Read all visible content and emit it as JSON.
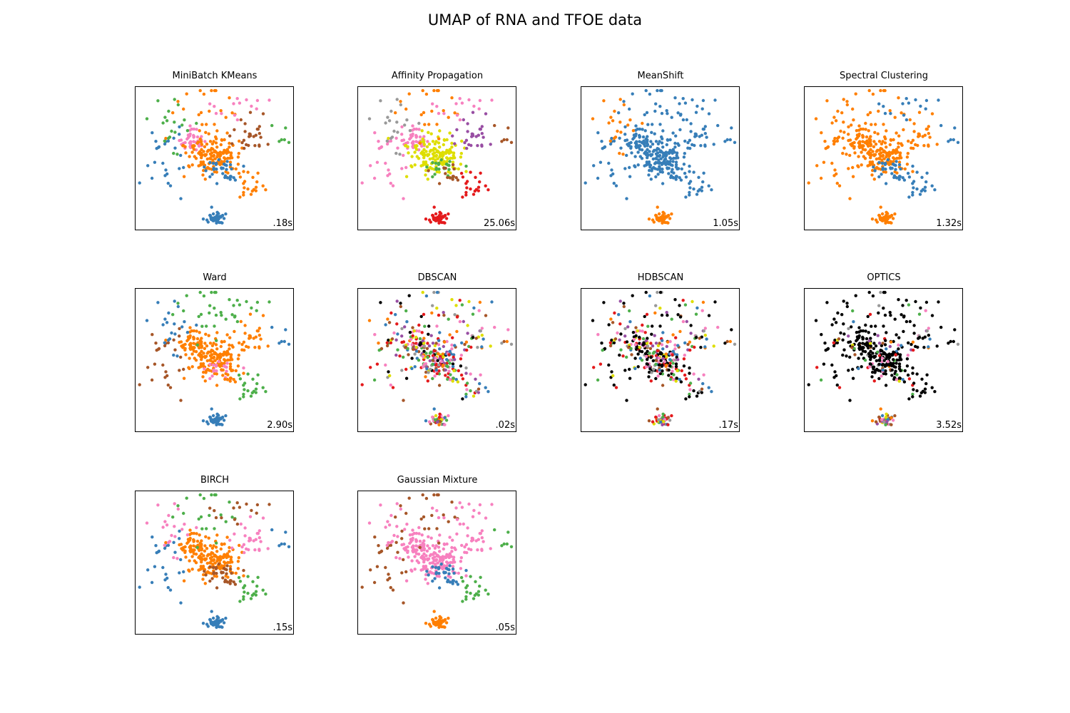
{
  "figure": {
    "title": "UMAP of RNA and TFOE data"
  },
  "colors": [
    "#377eb8",
    "#ff7f00",
    "#4daf4a",
    "#f781bf",
    "#a65628",
    "#984ea3",
    "#999999",
    "#e41a1c",
    "#dede00"
  ],
  "noise_color": "#000000",
  "chart_data": [
    {
      "type": "scatter",
      "title": "MiniBatch KMeans",
      "time_label": ".18s",
      "groups": {
        "A": 3,
        "B": 1,
        "C": 1,
        "D": 4,
        "E": 0,
        "F": 0,
        "G": 1,
        "H": 2,
        "I": 0,
        "J": 2,
        "K": 0,
        "L": 3
      },
      "noise": 0,
      "multi": false
    },
    {
      "type": "scatter",
      "title": "Affinity Propagation",
      "time_label": "25.06s",
      "groups": {
        "A": 3,
        "B": 8,
        "C": 1,
        "D": 5,
        "E": 2,
        "F": 4,
        "G": 7,
        "H": 4,
        "I": 3,
        "J": 6,
        "K": 7,
        "L": 3
      },
      "noise": 0,
      "multi": false
    },
    {
      "type": "scatter",
      "title": "MeanShift",
      "time_label": "1.05s",
      "groups": {
        "A": 0,
        "B": 0,
        "C": 0,
        "D": 0,
        "E": 0,
        "F": 0,
        "G": 0,
        "H": 0,
        "I": 0,
        "J": 1,
        "K": 1,
        "L": 0
      },
      "noise": 0,
      "multi": false
    },
    {
      "type": "scatter",
      "title": "Spectral Clustering",
      "time_label": "1.32s",
      "groups": {
        "A": 1,
        "B": 1,
        "C": 1,
        "D": 1,
        "E": 0,
        "F": 0,
        "G": 0,
        "H": 0,
        "I": 1,
        "J": 1,
        "K": 1,
        "L": 0
      },
      "noise": 0,
      "multi": false
    },
    {
      "type": "scatter",
      "title": "Ward",
      "time_label": "2.90s",
      "groups": {
        "A": 1,
        "B": 1,
        "C": 2,
        "D": 1,
        "E": 3,
        "F": 1,
        "G": 2,
        "H": 0,
        "I": 4,
        "J": 0,
        "K": 0,
        "L": 2
      },
      "noise": 0,
      "multi": false
    },
    {
      "type": "scatter",
      "title": "DBSCAN",
      "time_label": ".02s",
      "groups": {
        "A": 0,
        "B": 0,
        "C": 0,
        "D": 0,
        "E": 0,
        "F": 0,
        "G": 0,
        "H": 0,
        "I": 0,
        "J": 0,
        "K": 4,
        "L": 0
      },
      "noise": 0.08,
      "multi": true
    },
    {
      "type": "scatter",
      "title": "HDBSCAN",
      "time_label": ".17s",
      "groups": {
        "A": 0,
        "B": 0,
        "C": 0,
        "D": 0,
        "E": 0,
        "F": 0,
        "G": 0,
        "H": 0,
        "I": 0,
        "J": 0,
        "K": 8,
        "L": 0
      },
      "noise": 0.35,
      "multi": true
    },
    {
      "type": "scatter",
      "title": "OPTICS",
      "time_label": "3.52s",
      "groups": {
        "A": 0,
        "B": 0,
        "C": 0,
        "D": 0,
        "E": 0,
        "F": 0,
        "G": 0,
        "H": 0,
        "I": 0,
        "J": 0,
        "K": 5,
        "L": 0
      },
      "noise": 0.75,
      "multi": true
    },
    {
      "type": "scatter",
      "title": "BIRCH",
      "time_label": ".15s",
      "groups": {
        "A": 1,
        "B": 1,
        "C": 2,
        "D": 3,
        "E": 4,
        "F": 4,
        "G": 2,
        "H": 0,
        "I": 0,
        "J": 3,
        "K": 0,
        "L": 4
      },
      "noise": 0,
      "multi": false
    },
    {
      "type": "scatter",
      "title": "Gaussian Mixture",
      "time_label": ".05s",
      "groups": {
        "A": 3,
        "B": 3,
        "C": 4,
        "D": 3,
        "E": 0,
        "F": 0,
        "G": 2,
        "H": 2,
        "I": 4,
        "J": 3,
        "K": 1,
        "L": 3
      },
      "noise": 0,
      "multi": false
    }
  ]
}
